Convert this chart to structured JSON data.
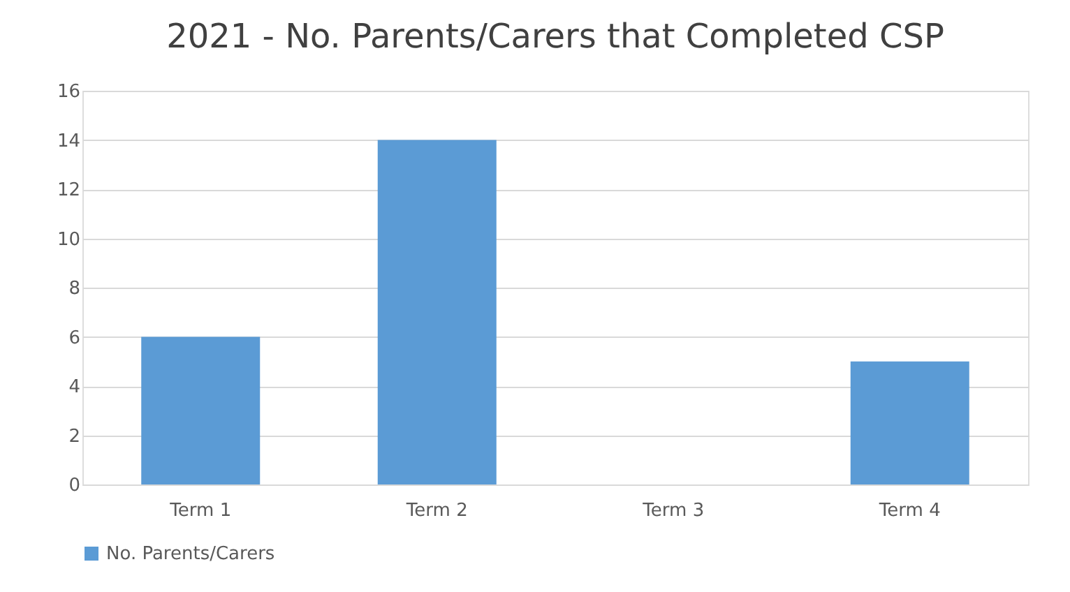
{
  "chart_data": {
    "type": "bar",
    "title": "2021 - No. Parents/Carers that Completed CSP",
    "categories": [
      "Term 1",
      "Term 2",
      "Term 3",
      "Term 4"
    ],
    "series": [
      {
        "name": "No. Parents/Carers",
        "color": "#5b9bd5",
        "values": [
          6,
          14,
          0,
          5
        ]
      }
    ],
    "ylim": [
      0,
      16
    ],
    "yticks": [
      0,
      2,
      4,
      6,
      8,
      10,
      12,
      14,
      16
    ],
    "grid": "y",
    "legend": "bottom"
  }
}
